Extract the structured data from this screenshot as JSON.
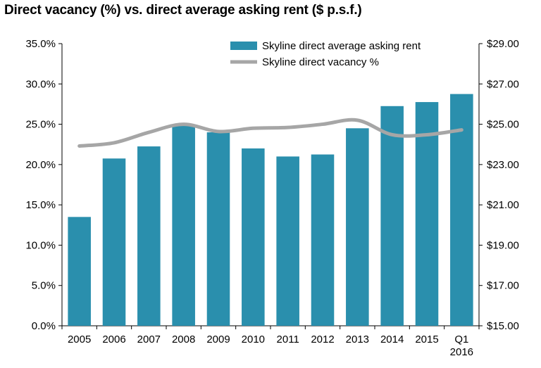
{
  "chart_data": {
    "type": "bar",
    "title": "Direct vacancy (%) vs. direct average asking rent ($ p.s.f.)",
    "categories": [
      "2005",
      "2006",
      "2007",
      "2008",
      "2009",
      "2010",
      "2011",
      "2012",
      "2013",
      "2014",
      "2015",
      "Q1 2016"
    ],
    "series": [
      {
        "name": "Skyline direct average asking rent",
        "type": "bar",
        "axis": "right",
        "color": "#2a8fad",
        "values": [
          20.4,
          23.3,
          23.9,
          25.0,
          24.6,
          23.8,
          23.4,
          23.5,
          24.8,
          25.9,
          26.1,
          26.5
        ]
      },
      {
        "name": "Skyline direct vacancy %",
        "type": "line",
        "axis": "left",
        "color": "#a6a6a6",
        "values": [
          22.3,
          22.7,
          24.0,
          25.0,
          24.1,
          24.5,
          24.6,
          25.0,
          25.5,
          23.7,
          23.7,
          24.3
        ]
      }
    ],
    "y_left": {
      "ylim": [
        0,
        35
      ],
      "tick_labels": [
        "0.0%",
        "5.0%",
        "10.0%",
        "15.0%",
        "20.0%",
        "25.0%",
        "30.0%",
        "35.0%"
      ]
    },
    "y_right": {
      "ylim": [
        15,
        29
      ],
      "tick_labels": [
        "$15.00",
        "$17.00",
        "$19.00",
        "$21.00",
        "$23.00",
        "$25.00",
        "$27.00",
        "$29.00"
      ]
    },
    "grid": false,
    "legend_position": "top-center"
  }
}
